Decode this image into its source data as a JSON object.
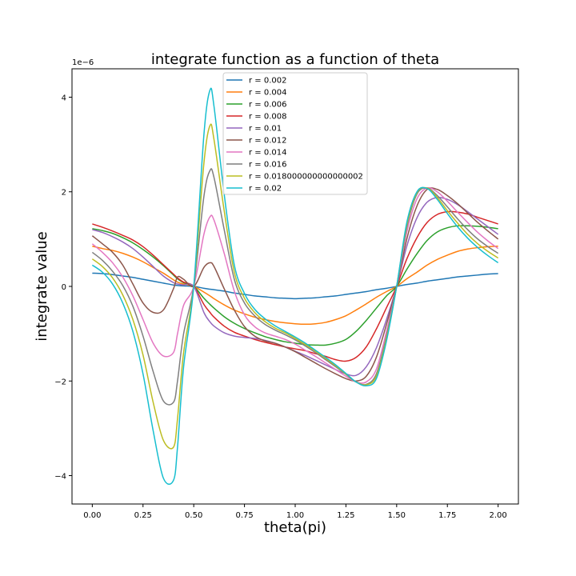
{
  "chart_data": {
    "type": "line",
    "title": "integrate function as a function of theta",
    "xlabel": "theta(pi)",
    "ylabel": "integrate value",
    "y_offset_text": "1e−6",
    "xlim": [
      -0.1,
      2.1
    ],
    "ylim": [
      -4.6,
      4.6
    ],
    "y_scale": "1e-6",
    "xticks": [
      0.0,
      0.25,
      0.5,
      0.75,
      1.0,
      1.25,
      1.5,
      1.75,
      2.0
    ],
    "xtick_labels": [
      "0.00",
      "0.25",
      "0.50",
      "0.75",
      "1.00",
      "1.25",
      "1.50",
      "1.75",
      "2.00"
    ],
    "yticks": [
      -4,
      -2,
      0,
      2,
      4
    ],
    "ytick_labels": [
      "−4",
      "−2",
      "0",
      "2",
      "4"
    ],
    "grid": false,
    "legend_position": "top-center",
    "x": [
      0.0,
      0.05,
      0.1,
      0.15,
      0.2,
      0.25,
      0.3,
      0.35,
      0.4,
      0.42,
      0.45,
      0.5,
      0.55,
      0.58,
      0.6,
      0.65,
      0.7,
      0.75,
      0.8,
      0.85,
      0.9,
      0.95,
      1.0,
      1.05,
      1.1,
      1.15,
      1.2,
      1.25,
      1.3,
      1.35,
      1.4,
      1.45,
      1.5,
      1.55,
      1.6,
      1.65,
      1.7,
      1.75,
      1.8,
      1.85,
      1.9,
      1.95,
      2.0
    ],
    "series": [
      {
        "name": "r = 0.002",
        "color": "#1f77b4",
        "values": [
          0.28,
          0.27,
          0.25,
          0.22,
          0.19,
          0.15,
          0.11,
          0.07,
          0.03,
          0.02,
          0.01,
          0.0,
          -0.04,
          -0.06,
          -0.07,
          -0.1,
          -0.14,
          -0.17,
          -0.2,
          -0.22,
          -0.24,
          -0.25,
          -0.26,
          -0.25,
          -0.24,
          -0.22,
          -0.2,
          -0.17,
          -0.14,
          -0.11,
          -0.07,
          -0.04,
          0.0,
          0.04,
          0.07,
          0.11,
          0.14,
          0.17,
          0.2,
          0.22,
          0.24,
          0.26,
          0.27
        ]
      },
      {
        "name": "r = 0.004",
        "color": "#ff7f0e",
        "values": [
          0.85,
          0.8,
          0.76,
          0.7,
          0.62,
          0.52,
          0.4,
          0.28,
          0.14,
          0.09,
          0.05,
          0.0,
          -0.12,
          -0.2,
          -0.26,
          -0.39,
          -0.5,
          -0.58,
          -0.65,
          -0.7,
          -0.74,
          -0.77,
          -0.79,
          -0.8,
          -0.79,
          -0.76,
          -0.7,
          -0.62,
          -0.5,
          -0.37,
          -0.23,
          -0.11,
          0.0,
          0.16,
          0.3,
          0.45,
          0.57,
          0.66,
          0.74,
          0.79,
          0.82,
          0.84,
          0.85
        ]
      },
      {
        "name": "r = 0.006",
        "color": "#2ca02c",
        "values": [
          1.22,
          1.18,
          1.12,
          1.03,
          0.92,
          0.78,
          0.62,
          0.44,
          0.24,
          0.16,
          0.08,
          0.0,
          -0.25,
          -0.38,
          -0.46,
          -0.64,
          -0.78,
          -0.89,
          -0.98,
          -1.06,
          -1.12,
          -1.17,
          -1.2,
          -1.23,
          -1.24,
          -1.24,
          -1.2,
          -1.12,
          -0.95,
          -0.72,
          -0.46,
          -0.2,
          0.0,
          0.36,
          0.69,
          0.97,
          1.15,
          1.24,
          1.28,
          1.28,
          1.27,
          1.25,
          1.22
        ]
      },
      {
        "name": "r = 0.008",
        "color": "#d62728",
        "values": [
          1.32,
          1.25,
          1.17,
          1.08,
          0.98,
          0.84,
          0.66,
          0.46,
          0.26,
          0.18,
          0.09,
          0.0,
          -0.38,
          -0.55,
          -0.65,
          -0.84,
          -0.97,
          -1.05,
          -1.12,
          -1.18,
          -1.23,
          -1.28,
          -1.32,
          -1.36,
          -1.42,
          -1.48,
          -1.55,
          -1.58,
          -1.5,
          -1.28,
          -0.9,
          -0.45,
          0.0,
          0.58,
          1.03,
          1.35,
          1.52,
          1.58,
          1.57,
          1.53,
          1.46,
          1.39,
          1.32
        ]
      },
      {
        "name": "r = 0.01",
        "color": "#9467bd",
        "values": [
          1.2,
          1.14,
          1.05,
          0.94,
          0.8,
          0.62,
          0.42,
          0.22,
          0.08,
          0.05,
          0.03,
          0.0,
          -0.55,
          -0.75,
          -0.84,
          -0.98,
          -1.05,
          -1.08,
          -1.1,
          -1.14,
          -1.2,
          -1.28,
          -1.37,
          -1.46,
          -1.56,
          -1.66,
          -1.76,
          -1.85,
          -1.88,
          -1.7,
          -1.3,
          -0.7,
          0.0,
          0.85,
          1.45,
          1.78,
          1.88,
          1.84,
          1.73,
          1.58,
          1.42,
          1.26,
          1.1
        ]
      },
      {
        "name": "r = 0.012",
        "color": "#8c564b",
        "values": [
          1.07,
          0.9,
          0.72,
          0.45,
          0.05,
          -0.35,
          -0.55,
          -0.5,
          -0.05,
          0.2,
          0.15,
          0.0,
          0.4,
          0.5,
          0.42,
          -0.05,
          -0.5,
          -0.85,
          -1.05,
          -1.15,
          -1.2,
          -1.28,
          -1.38,
          -1.5,
          -1.62,
          -1.74,
          -1.85,
          -1.95,
          -2.0,
          -1.9,
          -1.5,
          -0.8,
          0.0,
          1.0,
          1.7,
          2.05,
          2.05,
          1.92,
          1.75,
          1.55,
          1.35,
          1.17,
          1.0
        ]
      },
      {
        "name": "r = 0.014",
        "color": "#e377c2",
        "values": [
          0.9,
          0.72,
          0.5,
          0.2,
          -0.2,
          -0.7,
          -1.2,
          -1.47,
          -1.4,
          -1.0,
          -0.4,
          0.0,
          1.1,
          1.47,
          1.4,
          0.7,
          -0.1,
          -0.6,
          -0.85,
          -0.98,
          -1.05,
          -1.12,
          -1.22,
          -1.35,
          -1.48,
          -1.62,
          -1.76,
          -1.9,
          -2.02,
          -2.02,
          -1.75,
          -0.95,
          0.0,
          1.15,
          1.85,
          2.08,
          2.0,
          1.8,
          1.57,
          1.35,
          1.14,
          0.96,
          0.8
        ]
      },
      {
        "name": "r = 0.016",
        "color": "#7f7f7f",
        "values": [
          0.72,
          0.55,
          0.32,
          0.02,
          -0.42,
          -1.05,
          -1.8,
          -2.42,
          -2.45,
          -2.0,
          -1.0,
          0.0,
          1.9,
          2.45,
          2.3,
          1.2,
          0.15,
          -0.35,
          -0.62,
          -0.8,
          -0.92,
          -1.02,
          -1.13,
          -1.26,
          -1.4,
          -1.55,
          -1.7,
          -1.86,
          -2.02,
          -2.07,
          -1.85,
          -1.05,
          0.0,
          1.25,
          1.95,
          2.08,
          1.92,
          1.68,
          1.43,
          1.2,
          1.0,
          0.84,
          0.7
        ]
      },
      {
        "name": "r = 0.018000000000000002",
        "color": "#bcbd22",
        "values": [
          0.58,
          0.42,
          0.18,
          -0.18,
          -0.7,
          -1.45,
          -2.45,
          -3.25,
          -3.4,
          -2.8,
          -1.4,
          0.0,
          2.6,
          3.4,
          3.1,
          1.6,
          0.3,
          -0.25,
          -0.55,
          -0.74,
          -0.88,
          -0.98,
          -1.1,
          -1.23,
          -1.37,
          -1.52,
          -1.68,
          -1.85,
          -2.02,
          -2.08,
          -1.9,
          -1.1,
          0.0,
          1.3,
          1.98,
          2.08,
          1.88,
          1.6,
          1.34,
          1.1,
          0.9,
          0.74,
          0.6
        ]
      },
      {
        "name": "r = 0.02",
        "color": "#17becf",
        "values": [
          0.45,
          0.3,
          0.05,
          -0.35,
          -0.95,
          -1.85,
          -3.05,
          -4.05,
          -4.1,
          -3.4,
          -1.7,
          0.0,
          3.2,
          4.15,
          3.8,
          1.95,
          0.45,
          -0.15,
          -0.48,
          -0.68,
          -0.83,
          -0.95,
          -1.07,
          -1.2,
          -1.35,
          -1.5,
          -1.66,
          -1.84,
          -2.02,
          -2.1,
          -1.95,
          -1.15,
          0.0,
          1.35,
          2.0,
          2.07,
          1.84,
          1.54,
          1.26,
          1.02,
          0.82,
          0.65,
          0.5
        ]
      }
    ]
  }
}
